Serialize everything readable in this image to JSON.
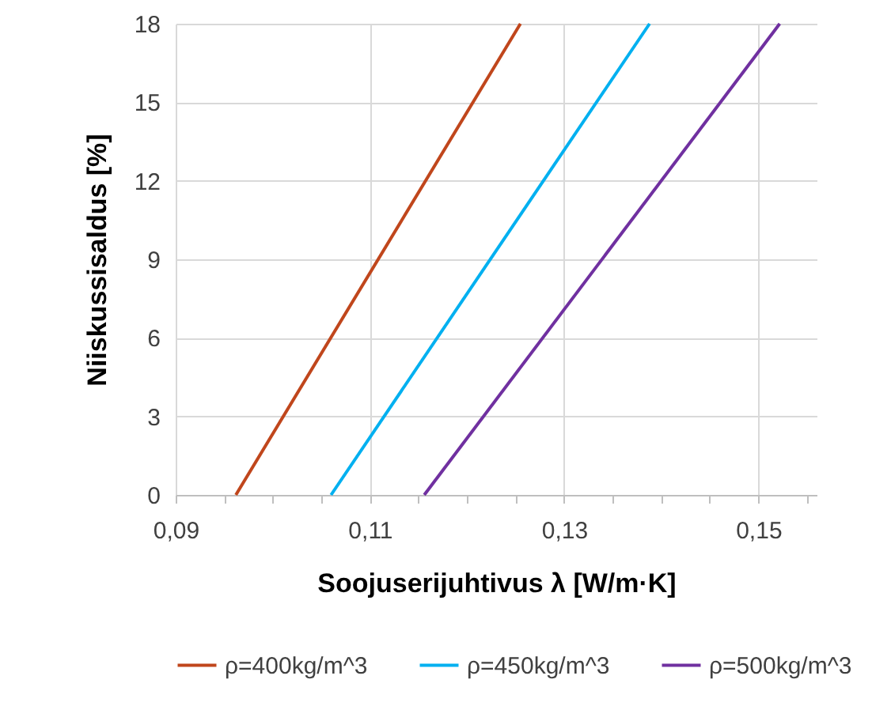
{
  "chart_data": {
    "type": "line",
    "xlabel": "Soojuserijuhtivus λ [W/m·K]",
    "ylabel": "Niiskussisaldus [%]",
    "series": [
      {
        "name": "ρ=400kg/m^3",
        "color": "#c0461c",
        "x": [
          0.0962,
          0.1255
        ],
        "values": [
          0,
          18
        ]
      },
      {
        "name": "ρ=450kg/m^3",
        "color": "#00b0f0",
        "x": [
          0.106,
          0.1388
        ],
        "values": [
          0,
          18
        ]
      },
      {
        "name": "ρ=500kg/m^3",
        "color": "#7030a0",
        "x": [
          0.1156,
          0.1522
        ],
        "values": [
          0,
          18
        ]
      }
    ],
    "xlim": [
      0.09,
      0.156
    ],
    "xticks": [
      {
        "value": 0.09,
        "label": "0,09"
      },
      {
        "value": 0.095,
        "label": null
      },
      {
        "value": 0.1,
        "label": null
      },
      {
        "value": 0.105,
        "label": null
      },
      {
        "value": 0.11,
        "label": "0,11"
      },
      {
        "value": 0.115,
        "label": null
      },
      {
        "value": 0.12,
        "label": null
      },
      {
        "value": 0.125,
        "label": null
      },
      {
        "value": 0.13,
        "label": "0,13"
      },
      {
        "value": 0.135,
        "label": null
      },
      {
        "value": 0.14,
        "label": null
      },
      {
        "value": 0.145,
        "label": null
      },
      {
        "value": 0.15,
        "label": "0,15"
      },
      {
        "value": 0.155,
        "label": null
      }
    ],
    "ylim": [
      0,
      18
    ],
    "yticks": [
      0,
      3,
      6,
      9,
      12,
      15,
      18
    ],
    "grid": true,
    "legend": "bottom",
    "marker": "none",
    "line_style": "solid"
  }
}
